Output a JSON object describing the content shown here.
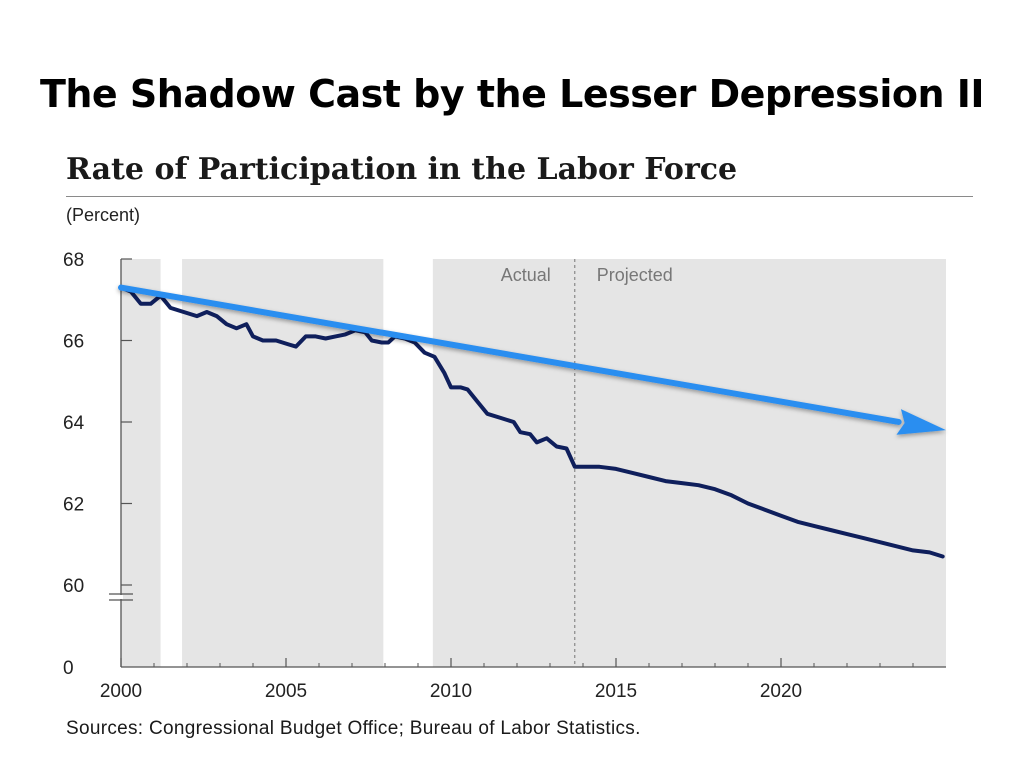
{
  "slide": {
    "title": "The Shadow Cast by the Lesser Depression II"
  },
  "chart_data": {
    "type": "line",
    "title": "Rate of Participation in the Labor Force",
    "unit_label": "(Percent)",
    "xlim": [
      2000,
      2025
    ],
    "y_ticks": [
      "0",
      "60",
      "62",
      "64",
      "66",
      "68"
    ],
    "y_axis_break": true,
    "x_ticks": [
      "2000",
      "2005",
      "2010",
      "2015",
      "2020"
    ],
    "grid": false,
    "recession_shading": "white bands mark recessions; remaining plot area shaded gray",
    "recessions": [
      [
        2001.2,
        2001.85
      ],
      [
        2007.95,
        2009.45
      ]
    ],
    "divider": {
      "x": 2013.75,
      "left_label": "Actual",
      "right_label": "Projected"
    },
    "series": [
      {
        "style": "dark navy line",
        "color": "#0f1f5c",
        "points": [
          [
            2000.0,
            67.3
          ],
          [
            2000.3,
            67.2
          ],
          [
            2000.6,
            66.9
          ],
          [
            2000.9,
            66.9
          ],
          [
            2001.2,
            67.1
          ],
          [
            2001.5,
            66.8
          ],
          [
            2001.9,
            66.7
          ],
          [
            2002.3,
            66.6
          ],
          [
            2002.6,
            66.7
          ],
          [
            2002.9,
            66.6
          ],
          [
            2003.2,
            66.4
          ],
          [
            2003.5,
            66.3
          ],
          [
            2003.8,
            66.4
          ],
          [
            2004.0,
            66.1
          ],
          [
            2004.3,
            66.0
          ],
          [
            2004.7,
            66.0
          ],
          [
            2005.1,
            65.9
          ],
          [
            2005.3,
            65.85
          ],
          [
            2005.6,
            66.1
          ],
          [
            2005.9,
            66.1
          ],
          [
            2006.2,
            66.05
          ],
          [
            2006.5,
            66.1
          ],
          [
            2006.8,
            66.15
          ],
          [
            2007.1,
            66.25
          ],
          [
            2007.4,
            66.2
          ],
          [
            2007.6,
            66.0
          ],
          [
            2007.9,
            65.95
          ],
          [
            2008.1,
            65.95
          ],
          [
            2008.3,
            66.1
          ],
          [
            2008.6,
            66.05
          ],
          [
            2008.9,
            65.95
          ],
          [
            2009.2,
            65.7
          ],
          [
            2009.5,
            65.6
          ],
          [
            2009.8,
            65.2
          ],
          [
            2010.0,
            64.85
          ],
          [
            2010.3,
            64.85
          ],
          [
            2010.5,
            64.8
          ],
          [
            2010.8,
            64.5
          ],
          [
            2011.1,
            64.2
          ],
          [
            2011.5,
            64.1
          ],
          [
            2011.9,
            64.0
          ],
          [
            2012.1,
            63.75
          ],
          [
            2012.4,
            63.7
          ],
          [
            2012.6,
            63.5
          ],
          [
            2012.9,
            63.6
          ],
          [
            2013.2,
            63.4
          ],
          [
            2013.5,
            63.35
          ],
          [
            2013.75,
            62.9
          ],
          [
            2014.0,
            62.9
          ],
          [
            2014.5,
            62.9
          ],
          [
            2015.0,
            62.85
          ],
          [
            2015.5,
            62.75
          ],
          [
            2016.0,
            62.65
          ],
          [
            2016.5,
            62.55
          ],
          [
            2017.0,
            62.5
          ],
          [
            2017.5,
            62.45
          ],
          [
            2018.0,
            62.35
          ],
          [
            2018.5,
            62.2
          ],
          [
            2019.0,
            62.0
          ],
          [
            2019.5,
            61.85
          ],
          [
            2020.0,
            61.7
          ],
          [
            2020.5,
            61.55
          ],
          [
            2021.0,
            61.45
          ],
          [
            2021.5,
            61.35
          ],
          [
            2022.0,
            61.25
          ],
          [
            2022.5,
            61.15
          ],
          [
            2023.0,
            61.05
          ],
          [
            2023.5,
            60.95
          ],
          [
            2024.0,
            60.85
          ],
          [
            2024.5,
            60.8
          ],
          [
            2024.9,
            60.7
          ]
        ]
      }
    ],
    "annotation_arrow": {
      "color": "#2b8ef0",
      "from": [
        2000.0,
        67.3
      ],
      "to": [
        2025.0,
        63.8
      ]
    },
    "sources": "Sources:  Congressional Budget Office; Bureau of Labor Statistics."
  },
  "colors": {
    "plot_shade": "#e5e5e5",
    "axis": "#555555",
    "divider": "#888888"
  }
}
